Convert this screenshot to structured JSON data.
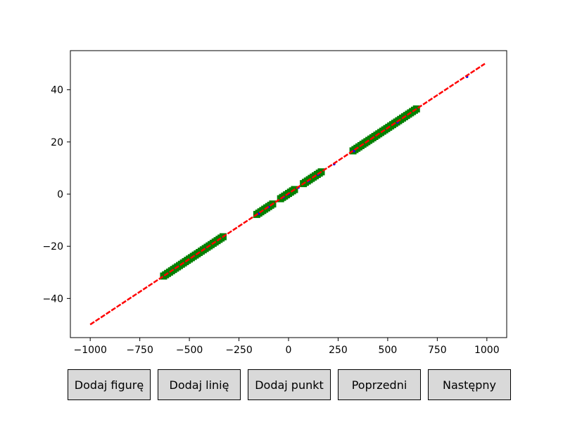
{
  "chart_data": {
    "type": "scatter",
    "xlim": [
      -1100,
      1100
    ],
    "ylim": [
      -55,
      55
    ],
    "x_ticks": [
      -1000,
      -750,
      -500,
      -250,
      0,
      250,
      500,
      750,
      1000
    ],
    "x_tick_labels": [
      "−1000",
      "−750",
      "−500",
      "−250",
      "0",
      "250",
      "500",
      "750",
      "1000"
    ],
    "y_ticks": [
      -40,
      -20,
      0,
      20,
      40
    ],
    "y_tick_labels": [
      "−40",
      "−20",
      "0",
      "20",
      "40"
    ],
    "grid": false,
    "series": [
      {
        "style": "line",
        "color": "#ff0000",
        "points": [
          [
            -1000,
            -50
          ],
          [
            990,
            50
          ]
        ]
      },
      {
        "style": "scatter",
        "color": "#0000ff",
        "marker": "point",
        "points": [
          [
            -150,
            -7.5
          ],
          [
            -100,
            -5
          ],
          [
            -25,
            -1.2
          ],
          [
            0,
            0
          ],
          [
            50,
            2.5
          ],
          [
            100,
            5
          ],
          [
            150,
            7.5
          ],
          [
            230,
            11.5
          ],
          [
            330,
            16.5
          ],
          [
            550,
            27.5
          ],
          [
            900,
            45
          ]
        ]
      },
      {
        "style": "scatter",
        "color": "#008000",
        "marker": "square",
        "segments": [
          [
            -630,
            -330
          ],
          [
            -160,
            -80
          ],
          [
            -40,
            30
          ],
          [
            75,
            165
          ],
          [
            325,
            645
          ]
        ]
      }
    ]
  },
  "buttons": {
    "add_figure": "Dodaj figurę",
    "add_line": "Dodaj linię",
    "add_point": "Dodaj punkt",
    "previous": "Poprzedni",
    "next": "Następny"
  }
}
